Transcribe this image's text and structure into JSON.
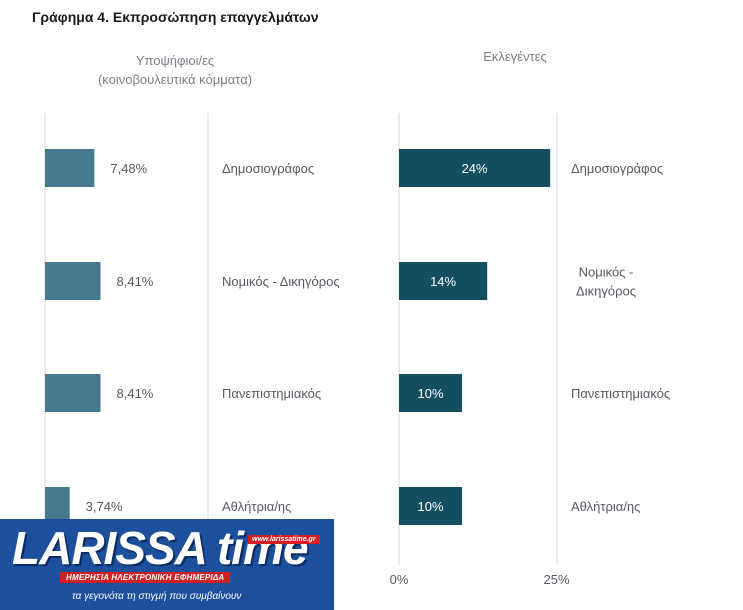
{
  "chart_data": [
    {
      "type": "bar",
      "orientation": "horizontal",
      "subtitle": "Υποψήφιοι/ες\n(κοινοβουλευτικά κόμματα)",
      "categories": [
        "Δημοσιογράφος",
        "Νομικός - Δικηγόρος",
        "Πανεπιστημιακός",
        "Αθλήτρια/ης"
      ],
      "values": [
        7.48,
        8.41,
        8.41,
        3.74
      ],
      "value_labels": [
        "7,48%",
        "8,41%",
        "8,41%",
        "3,74%"
      ],
      "xlim": [
        0,
        25
      ],
      "color": "#457a8e"
    },
    {
      "type": "bar",
      "orientation": "horizontal",
      "subtitle": "Εκλεγέντες",
      "categories": [
        "Δημοσιογράφος",
        "Νομικός -\nΔικηγόρος",
        "Πανεπιστημιακός",
        "Αθλήτρια/ης"
      ],
      "values": [
        24,
        14,
        10,
        10
      ],
      "value_labels": [
        "24%",
        "14%",
        "10%",
        "10%"
      ],
      "xlim": [
        0,
        25
      ],
      "tick_labels": [
        "0%",
        "25%"
      ],
      "color": "#134f61"
    }
  ],
  "title": "Γράφημα 4. Εκπροσώπηση επαγγελμάτων",
  "logo": {
    "name": "LARISSA time",
    "url": "www.larissatime.gr",
    "strip": "ΗΜΕΡΗΣΙΑ ΗΛΕΚΤΡΟΝΙΚΗ ΕΦΗΜΕΡΙΔΑ",
    "tagline": "τα γεγονότα τη στιγμή που συμβαίνουν"
  }
}
